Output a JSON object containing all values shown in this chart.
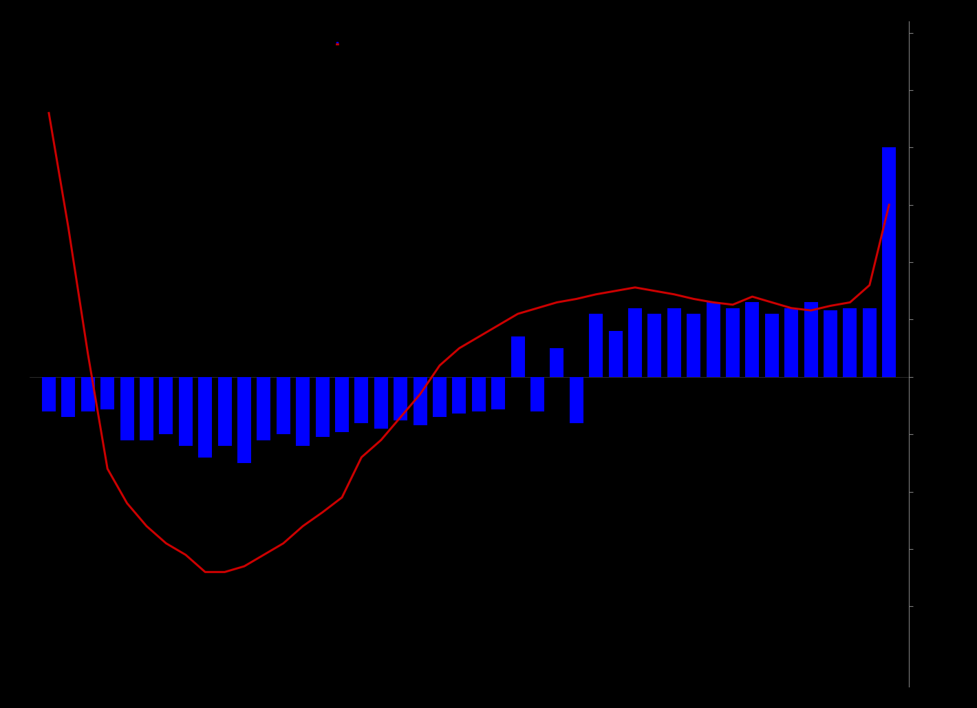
{
  "title": "",
  "legend_bar": "",
  "legend_line": "",
  "background_color": "#000000",
  "bar_color": "#0000ff",
  "line_color": "#cc0000",
  "text_color": "#ffffff",
  "axis_color": "#808080",
  "bar_values": [
    -30,
    -35,
    -30,
    -28,
    -55,
    -55,
    -50,
    -60,
    -70,
    -60,
    -75,
    -55,
    -50,
    -60,
    -52,
    -48,
    -40,
    -45,
    -38,
    -42,
    -35,
    -32,
    -30,
    -28,
    35,
    -30,
    25,
    -40,
    55,
    40,
    60,
    55,
    60,
    55,
    65,
    60,
    65,
    55,
    60,
    65,
    58,
    60,
    60,
    200
  ],
  "line_values": [
    230,
    130,
    20,
    -80,
    -110,
    -130,
    -145,
    -155,
    -170,
    -170,
    -165,
    -155,
    -145,
    -130,
    -118,
    -105,
    -70,
    -55,
    -35,
    -15,
    10,
    25,
    35,
    45,
    55,
    60,
    65,
    68,
    72,
    75,
    78,
    75,
    72,
    68,
    65,
    63,
    70,
    65,
    60,
    58,
    62,
    65,
    80,
    150
  ],
  "ylim": [
    -270,
    310
  ],
  "figsize": [
    14.2,
    10.29
  ],
  "dpi": 100
}
